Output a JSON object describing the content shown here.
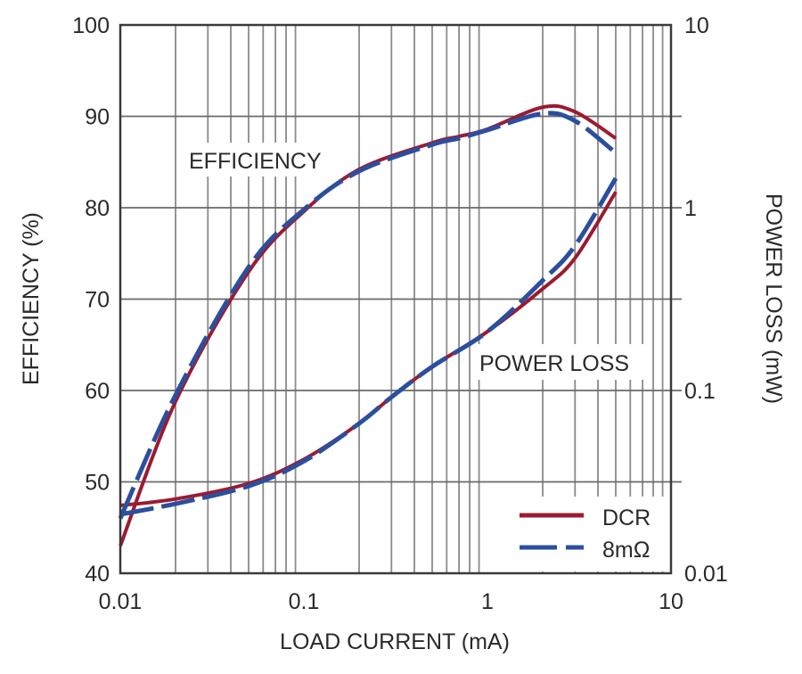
{
  "chart_data": {
    "type": "line",
    "title": "",
    "xlabel": "LOAD CURRENT (mA)",
    "ylabel": "EFFICIENCY (%)",
    "y2label": "POWER LOSS (mW)",
    "xscale": "log",
    "xlim": [
      0.01,
      10
    ],
    "ylim": [
      40,
      100
    ],
    "y2scale": "log",
    "y2lim": [
      0.01,
      10
    ],
    "grid": true,
    "legend_position": "lower right",
    "x_ticks": [
      "0.01",
      "0.1",
      "1",
      "10"
    ],
    "y_ticks": [
      "40",
      "50",
      "60",
      "70",
      "80",
      "90",
      "100"
    ],
    "y2_ticks": [
      "0.01",
      "0.1",
      "1",
      "10"
    ],
    "annotations": [
      "EFFICIENCY",
      "POWER LOSS"
    ],
    "series": [
      {
        "name": "DCR",
        "axis": "left",
        "quantity": "efficiency",
        "style": "solid",
        "color": "#9b1b30",
        "x": [
          0.01,
          0.02,
          0.05,
          0.1,
          0.2,
          0.5,
          0.7,
          1,
          2,
          3,
          5
        ],
        "values": [
          43.0,
          58.8,
          73.0,
          79.6,
          84.2,
          87.1,
          87.8,
          88.6,
          91.0,
          90.5,
          87.6
        ]
      },
      {
        "name": "8mΩ",
        "axis": "left",
        "quantity": "efficiency",
        "style": "dashed",
        "color": "#2b4f9e",
        "x": [
          0.01,
          0.02,
          0.05,
          0.1,
          0.2,
          0.5,
          0.7,
          1,
          2,
          3,
          5
        ],
        "values": [
          46.0,
          59.5,
          73.5,
          79.8,
          84.0,
          86.9,
          87.6,
          88.5,
          90.3,
          89.5,
          86.0
        ]
      },
      {
        "name": "DCR",
        "axis": "right",
        "quantity": "power_loss",
        "style": "solid",
        "color": "#9b1b30",
        "x": [
          0.01,
          0.02,
          0.05,
          0.1,
          0.2,
          0.3,
          0.5,
          1,
          2,
          3,
          5
        ],
        "values": [
          0.0235,
          0.0255,
          0.031,
          0.042,
          0.066,
          0.092,
          0.135,
          0.21,
          0.36,
          0.53,
          1.22
        ]
      },
      {
        "name": "8mΩ",
        "axis": "right",
        "quantity": "power_loss",
        "style": "dashed",
        "color": "#2b4f9e",
        "x": [
          0.01,
          0.02,
          0.05,
          0.1,
          0.2,
          0.3,
          0.5,
          1,
          2,
          3,
          5
        ],
        "values": [
          0.021,
          0.024,
          0.03,
          0.041,
          0.066,
          0.092,
          0.135,
          0.21,
          0.4,
          0.62,
          1.45
        ]
      }
    ]
  },
  "labels": {
    "xlabel": "LOAD CURRENT (mA)",
    "ylabel": "EFFICIENCY (%)",
    "y2label": "POWER LOSS (mW)",
    "annot_eff": "EFFICIENCY",
    "annot_loss": "POWER LOSS",
    "x_ticks": [
      "0.01",
      "0.1",
      "1",
      "10"
    ],
    "y_ticks": [
      "40",
      "50",
      "60",
      "70",
      "80",
      "90",
      "100"
    ],
    "y2_ticks": [
      "0.01",
      "0.1",
      "1",
      "10"
    ]
  },
  "legend": {
    "items": [
      {
        "label": "DCR",
        "color": "#9b1b30",
        "style": "solid"
      },
      {
        "label": "8mΩ",
        "color": "#2b4f9e",
        "style": "dashed"
      }
    ]
  }
}
